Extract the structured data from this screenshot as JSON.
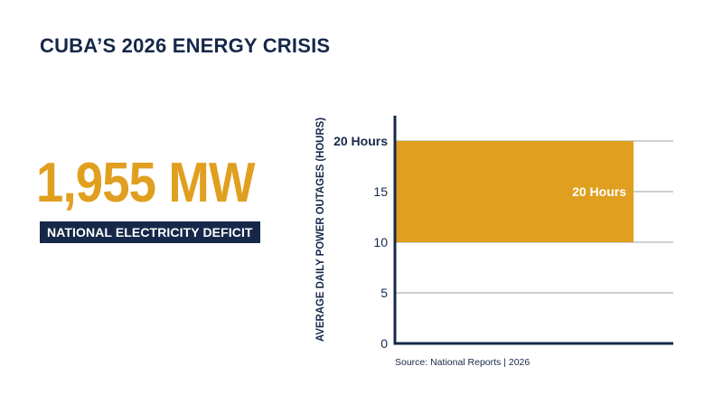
{
  "page": {
    "title": "CUBA’S 2026 ENERGY CRISIS",
    "stat_value": "1,955 MW",
    "stat_label": "NATIONAL ELECTRICITY DEFICIT",
    "source": "Source: National Reports | 2026"
  },
  "colors": {
    "navy": "#16284a",
    "gold": "#e09f1f",
    "grid": "#9aa0a6"
  },
  "chart_data": {
    "type": "bar",
    "title": "",
    "xlabel": "",
    "ylabel": "AVERAGE DAILY POWER OUTAGES (HOURS)",
    "ylim": [
      0,
      22.5
    ],
    "yticks": [
      {
        "value": 0,
        "label": "0",
        "bold": false
      },
      {
        "value": 5,
        "label": "5",
        "bold": false
      },
      {
        "value": 10,
        "label": "10",
        "bold": false
      },
      {
        "value": 15,
        "label": "15",
        "bold": false
      },
      {
        "value": 20,
        "label": "20 Hours",
        "bold": true
      }
    ],
    "bars": [
      {
        "low": 10,
        "high": 20,
        "label": "20 Hours"
      }
    ],
    "grid": true
  }
}
